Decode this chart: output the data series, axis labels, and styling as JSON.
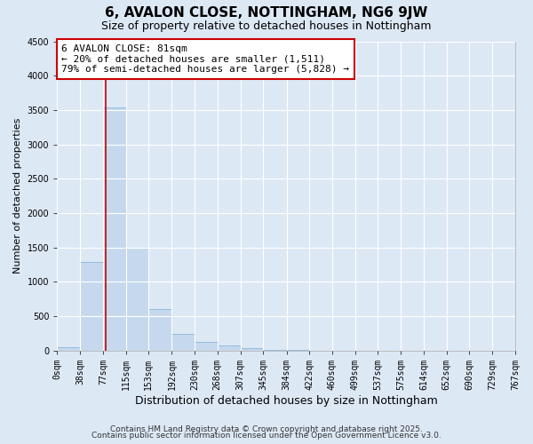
{
  "title": "6, AVALON CLOSE, NOTTINGHAM, NG6 9JW",
  "subtitle": "Size of property relative to detached houses in Nottingham",
  "xlabel": "Distribution of detached houses by size in Nottingham",
  "ylabel": "Number of detached properties",
  "bar_color": "#c5d8ee",
  "bar_edge_color": "#7bafd4",
  "background_color": "#dde8f5",
  "grid_color": "#ffffff",
  "bins": [
    0,
    38,
    77,
    115,
    153,
    192,
    230,
    268,
    307,
    345,
    384,
    422,
    460,
    499,
    537,
    575,
    614,
    652,
    690,
    729,
    767
  ],
  "bin_labels": [
    "0sqm",
    "38sqm",
    "77sqm",
    "115sqm",
    "153sqm",
    "192sqm",
    "230sqm",
    "268sqm",
    "307sqm",
    "345sqm",
    "384sqm",
    "422sqm",
    "460sqm",
    "499sqm",
    "537sqm",
    "575sqm",
    "614sqm",
    "652sqm",
    "690sqm",
    "729sqm",
    "767sqm"
  ],
  "counts": [
    50,
    1290,
    3540,
    1500,
    600,
    240,
    120,
    70,
    30,
    10,
    5,
    0,
    0,
    0,
    0,
    0,
    0,
    0,
    0,
    0
  ],
  "vline_x": 81,
  "vline_color": "#cc0000",
  "annotation_title": "6 AVALON CLOSE: 81sqm",
  "annotation_line1": "← 20% of detached houses are smaller (1,511)",
  "annotation_line2": "79% of semi-detached houses are larger (5,828) →",
  "annotation_box_facecolor": "#ffffff",
  "annotation_box_edgecolor": "#cc0000",
  "ylim": [
    0,
    4500
  ],
  "yticks": [
    0,
    500,
    1000,
    1500,
    2000,
    2500,
    3000,
    3500,
    4000,
    4500
  ],
  "footer1": "Contains HM Land Registry data © Crown copyright and database right 2025.",
  "footer2": "Contains public sector information licensed under the Open Government Licence v3.0.",
  "title_fontsize": 11,
  "subtitle_fontsize": 9,
  "xlabel_fontsize": 9,
  "ylabel_fontsize": 8,
  "tick_fontsize": 7,
  "annotation_fontsize": 8,
  "footer_fontsize": 6.5
}
